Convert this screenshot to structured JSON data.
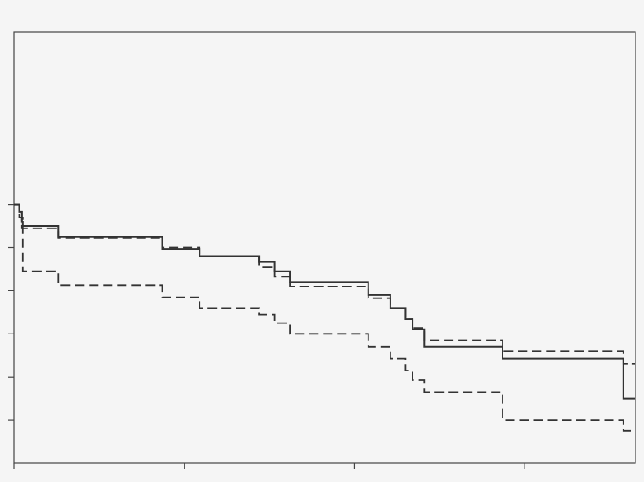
{
  "chart_data": {
    "type": "line",
    "title": "",
    "xlabel": "",
    "ylabel": "",
    "grid": false,
    "legend": "none",
    "xlim": [
      0,
      36.5
    ],
    "ylim": [
      0,
      1.0
    ],
    "xticks": [
      0,
      10,
      20,
      30
    ],
    "yticks": [
      0.1,
      0.2,
      0.3,
      0.4,
      0.5,
      0.6
    ],
    "series": [
      {
        "style": "solid",
        "color": "#333333",
        "points": [
          [
            0.0,
            0.6
          ],
          [
            0.3,
            0.6
          ],
          [
            0.3,
            0.583
          ],
          [
            0.45,
            0.583
          ],
          [
            0.45,
            0.56
          ],
          [
            0.5,
            0.56
          ],
          [
            0.5,
            0.55
          ],
          [
            2.6,
            0.55
          ],
          [
            2.6,
            0.525
          ],
          [
            8.7,
            0.525
          ],
          [
            8.7,
            0.497
          ],
          [
            10.9,
            0.497
          ],
          [
            10.9,
            0.48
          ],
          [
            14.4,
            0.48
          ],
          [
            14.4,
            0.467
          ],
          [
            15.3,
            0.467
          ],
          [
            15.3,
            0.445
          ],
          [
            16.2,
            0.445
          ],
          [
            16.2,
            0.42
          ],
          [
            20.8,
            0.42
          ],
          [
            20.8,
            0.39
          ],
          [
            22.1,
            0.39
          ],
          [
            22.1,
            0.36
          ],
          [
            23.0,
            0.36
          ],
          [
            23.0,
            0.335
          ],
          [
            23.4,
            0.335
          ],
          [
            23.4,
            0.31
          ],
          [
            24.1,
            0.31
          ],
          [
            24.1,
            0.27
          ],
          [
            28.7,
            0.27
          ],
          [
            28.7,
            0.243
          ],
          [
            35.8,
            0.243
          ],
          [
            35.8,
            0.15
          ],
          [
            36.5,
            0.15
          ]
        ]
      },
      {
        "style": "dashed",
        "color": "#333333",
        "points": [
          [
            0.0,
            0.6
          ],
          [
            0.3,
            0.6
          ],
          [
            0.3,
            0.583
          ],
          [
            0.45,
            0.583
          ],
          [
            0.45,
            0.57
          ],
          [
            0.5,
            0.57
          ],
          [
            0.5,
            0.545
          ],
          [
            2.6,
            0.545
          ],
          [
            2.6,
            0.523
          ],
          [
            8.7,
            0.523
          ],
          [
            8.7,
            0.5
          ],
          [
            10.9,
            0.5
          ],
          [
            10.9,
            0.48
          ],
          [
            14.4,
            0.48
          ],
          [
            14.4,
            0.455
          ],
          [
            15.3,
            0.455
          ],
          [
            15.3,
            0.433
          ],
          [
            16.2,
            0.433
          ],
          [
            16.2,
            0.41
          ],
          [
            20.8,
            0.41
          ],
          [
            20.8,
            0.383
          ],
          [
            22.1,
            0.383
          ],
          [
            22.1,
            0.36
          ],
          [
            23.0,
            0.36
          ],
          [
            23.0,
            0.335
          ],
          [
            23.4,
            0.335
          ],
          [
            23.4,
            0.313
          ],
          [
            24.1,
            0.313
          ],
          [
            24.1,
            0.285
          ],
          [
            28.7,
            0.285
          ],
          [
            28.7,
            0.26
          ],
          [
            35.8,
            0.26
          ],
          [
            35.8,
            0.23
          ],
          [
            36.5,
            0.23
          ]
        ]
      },
      {
        "style": "dashed",
        "color": "#333333",
        "points": [
          [
            0.0,
            0.6
          ],
          [
            0.3,
            0.6
          ],
          [
            0.3,
            0.57
          ],
          [
            0.45,
            0.57
          ],
          [
            0.45,
            0.545
          ],
          [
            0.5,
            0.545
          ],
          [
            0.5,
            0.445
          ],
          [
            2.6,
            0.445
          ],
          [
            2.6,
            0.413
          ],
          [
            8.7,
            0.413
          ],
          [
            8.7,
            0.385
          ],
          [
            10.9,
            0.385
          ],
          [
            10.9,
            0.36
          ],
          [
            14.4,
            0.36
          ],
          [
            14.4,
            0.345
          ],
          [
            15.3,
            0.345
          ],
          [
            15.3,
            0.325
          ],
          [
            16.2,
            0.325
          ],
          [
            16.2,
            0.3
          ],
          [
            20.8,
            0.3
          ],
          [
            20.8,
            0.27
          ],
          [
            22.1,
            0.27
          ],
          [
            22.1,
            0.243
          ],
          [
            23.0,
            0.243
          ],
          [
            23.0,
            0.215
          ],
          [
            23.4,
            0.215
          ],
          [
            23.4,
            0.193
          ],
          [
            24.1,
            0.193
          ],
          [
            24.1,
            0.165
          ],
          [
            28.7,
            0.165
          ],
          [
            28.7,
            0.1
          ],
          [
            35.8,
            0.1
          ],
          [
            35.8,
            0.075
          ],
          [
            36.5,
            0.075
          ]
        ]
      }
    ]
  }
}
